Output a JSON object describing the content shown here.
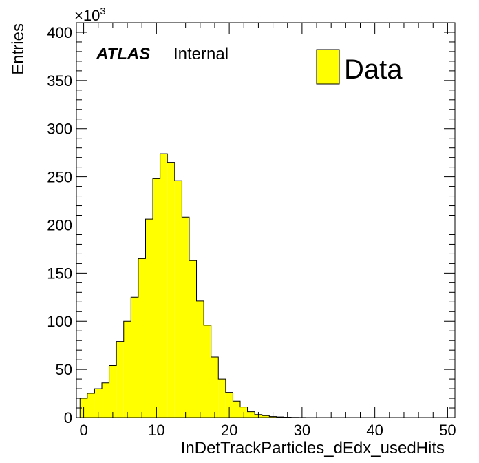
{
  "chart_data": {
    "type": "bar",
    "title": "",
    "xlabel": "InDetTrackParticles_dEdx_usedHits",
    "ylabel": "Entries",
    "y_multiplier_label": "×10",
    "y_multiplier_exponent": "3",
    "xlim": [
      -1,
      51
    ],
    "ylim": [
      0,
      410
    ],
    "x_ticks": [
      0,
      10,
      20,
      30,
      40,
      50
    ],
    "y_ticks": [
      0,
      50,
      100,
      150,
      200,
      250,
      300,
      350,
      400
    ],
    "bin_width": 1,
    "bin_centers": [
      0,
      1,
      2,
      3,
      4,
      5,
      6,
      7,
      8,
      9,
      10,
      11,
      12,
      13,
      14,
      15,
      16,
      17,
      18,
      19,
      20,
      21,
      22,
      23,
      24,
      25,
      26,
      27,
      28,
      29,
      30,
      31,
      32,
      33,
      34,
      35,
      36,
      37,
      38,
      39,
      40,
      41,
      42,
      43,
      44,
      45,
      46,
      47,
      48,
      49,
      50
    ],
    "values": [
      20,
      25,
      30,
      36,
      54,
      79,
      100,
      125,
      165,
      206,
      248,
      274,
      265,
      246,
      208,
      163,
      121,
      96,
      63,
      40,
      26,
      17,
      11,
      6,
      3,
      2,
      1,
      0.6,
      0.4,
      0.2,
      0.1,
      0,
      0,
      0,
      0,
      0,
      0,
      0,
      0,
      0,
      0,
      0,
      0,
      0,
      0,
      0,
      0,
      0,
      0,
      0,
      0
    ],
    "fill_color": "#ffff00",
    "grid": false,
    "legend": {
      "placement": "top-right",
      "entries": [
        {
          "name": "Data",
          "color": "#ffff00"
        }
      ]
    },
    "annotations": {
      "experiment": "ATLAS",
      "status": "Internal"
    }
  }
}
